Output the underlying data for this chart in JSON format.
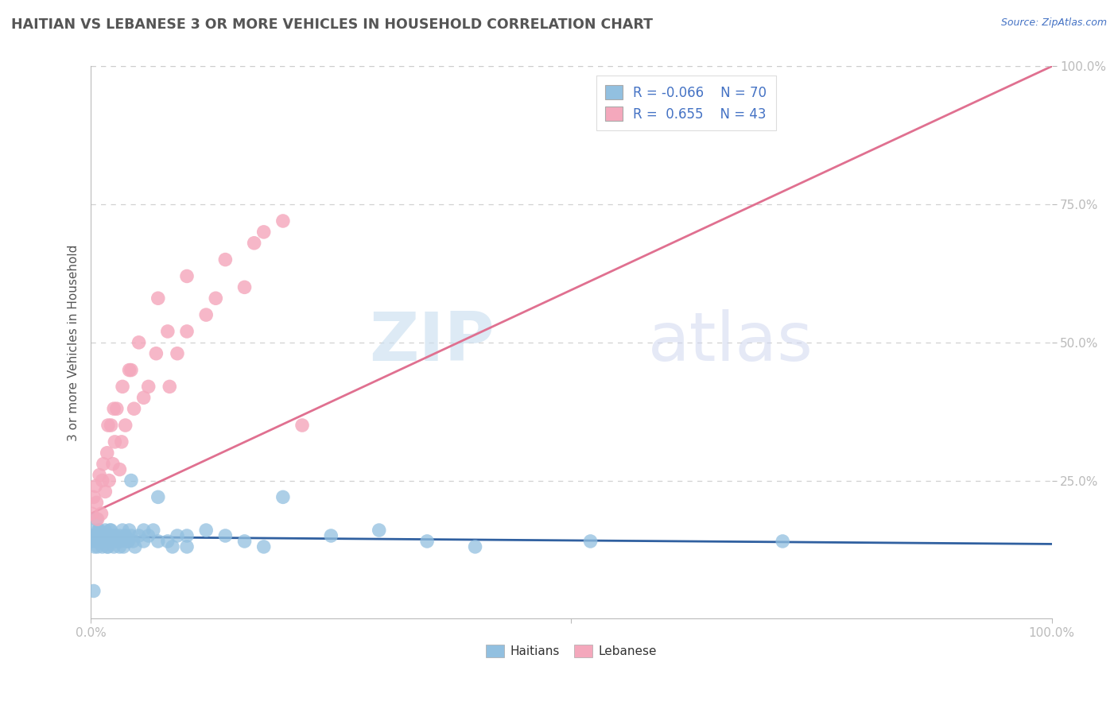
{
  "title": "HAITIAN VS LEBANESE 3 OR MORE VEHICLES IN HOUSEHOLD CORRELATION CHART",
  "source_text": "Source: ZipAtlas.com",
  "ylabel": "3 or more Vehicles in Household",
  "watermark_zip": "ZIP",
  "watermark_atlas": "atlas",
  "legend_labels": [
    "Haitians",
    "Lebanese"
  ],
  "r_values": [
    -0.066,
    0.655
  ],
  "n_values": [
    70,
    43
  ],
  "blue_color": "#92c0e0",
  "pink_color": "#f4a8bc",
  "blue_line_color": "#3060a0",
  "pink_line_color": "#e07090",
  "text_color": "#4472c4",
  "axis_color": "#bbbbbb",
  "grid_color": "#cccccc",
  "title_color": "#555555",
  "background_color": "#ffffff",
  "xlim": [
    0.0,
    1.0
  ],
  "ylim": [
    0.0,
    1.0
  ],
  "blue_x": [
    0.001,
    0.002,
    0.003,
    0.004,
    0.005,
    0.006,
    0.007,
    0.008,
    0.009,
    0.01,
    0.011,
    0.012,
    0.013,
    0.014,
    0.015,
    0.016,
    0.017,
    0.018,
    0.019,
    0.02,
    0.022,
    0.024,
    0.026,
    0.028,
    0.03,
    0.032,
    0.034,
    0.036,
    0.038,
    0.04,
    0.042,
    0.044,
    0.046,
    0.05,
    0.055,
    0.06,
    0.065,
    0.07,
    0.08,
    0.09,
    0.1,
    0.12,
    0.14,
    0.16,
    0.18,
    0.2,
    0.25,
    0.3,
    0.35,
    0.4,
    0.003,
    0.006,
    0.009,
    0.012,
    0.015,
    0.018,
    0.021,
    0.024,
    0.027,
    0.03,
    0.033,
    0.036,
    0.039,
    0.042,
    0.055,
    0.07,
    0.085,
    0.1,
    0.52,
    0.72
  ],
  "blue_y": [
    0.14,
    0.15,
    0.16,
    0.13,
    0.14,
    0.15,
    0.13,
    0.16,
    0.14,
    0.15,
    0.14,
    0.13,
    0.15,
    0.14,
    0.16,
    0.15,
    0.13,
    0.14,
    0.15,
    0.16,
    0.14,
    0.13,
    0.15,
    0.14,
    0.15,
    0.14,
    0.13,
    0.15,
    0.14,
    0.16,
    0.15,
    0.14,
    0.13,
    0.15,
    0.14,
    0.15,
    0.16,
    0.22,
    0.14,
    0.15,
    0.13,
    0.16,
    0.15,
    0.14,
    0.13,
    0.22,
    0.15,
    0.16,
    0.14,
    0.13,
    0.05,
    0.18,
    0.16,
    0.15,
    0.14,
    0.13,
    0.16,
    0.15,
    0.14,
    0.13,
    0.16,
    0.15,
    0.14,
    0.25,
    0.16,
    0.14,
    0.13,
    0.15,
    0.14,
    0.14
  ],
  "pink_x": [
    0.001,
    0.003,
    0.005,
    0.007,
    0.009,
    0.011,
    0.013,
    0.015,
    0.017,
    0.019,
    0.021,
    0.023,
    0.025,
    0.027,
    0.03,
    0.033,
    0.036,
    0.04,
    0.045,
    0.05,
    0.06,
    0.07,
    0.08,
    0.09,
    0.1,
    0.12,
    0.14,
    0.16,
    0.18,
    0.2,
    0.006,
    0.012,
    0.018,
    0.024,
    0.032,
    0.042,
    0.055,
    0.068,
    0.082,
    0.1,
    0.13,
    0.17,
    0.22
  ],
  "pink_y": [
    0.19,
    0.22,
    0.24,
    0.18,
    0.26,
    0.19,
    0.28,
    0.23,
    0.3,
    0.25,
    0.35,
    0.28,
    0.32,
    0.38,
    0.27,
    0.42,
    0.35,
    0.45,
    0.38,
    0.5,
    0.42,
    0.58,
    0.52,
    0.48,
    0.62,
    0.55,
    0.65,
    0.6,
    0.7,
    0.72,
    0.21,
    0.25,
    0.35,
    0.38,
    0.32,
    0.45,
    0.4,
    0.48,
    0.42,
    0.52,
    0.58,
    0.68,
    0.35
  ],
  "blue_trend_x0": 0.0,
  "blue_trend_x1": 1.0,
  "blue_trend_y0": 0.148,
  "blue_trend_y1": 0.135,
  "pink_trend_x0": 0.0,
  "pink_trend_x1": 1.0,
  "pink_trend_y0": 0.19,
  "pink_trend_y1": 1.0
}
